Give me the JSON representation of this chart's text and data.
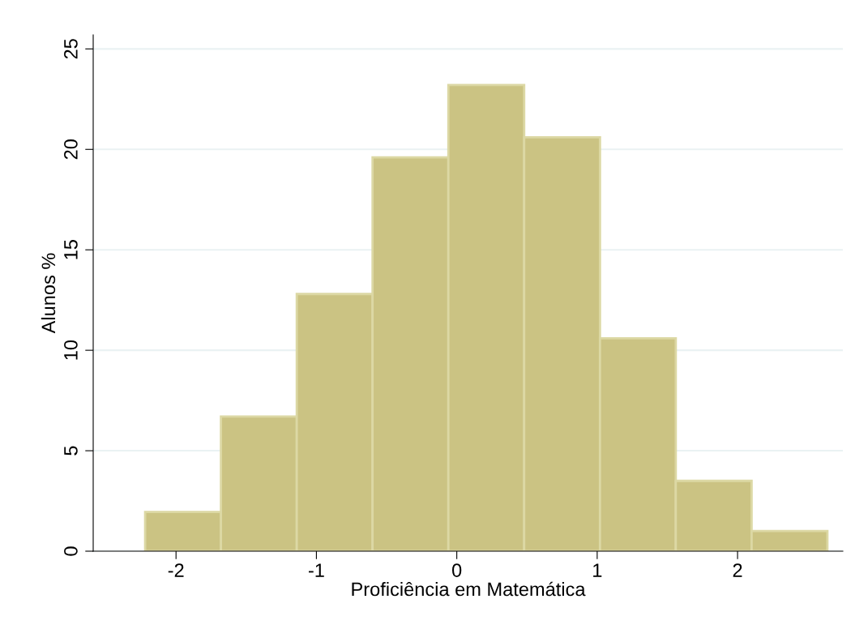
{
  "chart_data": {
    "type": "histogram",
    "xlabel": "Proficiência em Matemática",
    "ylabel": "Alunos %",
    "bins": [
      -2.22,
      -1.68,
      -1.14,
      -0.6,
      -0.06,
      0.48,
      1.02,
      1.56,
      2.1,
      2.64
    ],
    "values": [
      1.95,
      6.7,
      12.8,
      19.6,
      23.2,
      20.6,
      10.6,
      3.5,
      1.0
    ],
    "color": "#cbc383",
    "xlim": [
      -2.59,
      2.75
    ],
    "xticks": [
      -2,
      -1,
      0,
      1,
      2
    ],
    "ylim": [
      0,
      25.7
    ],
    "yticks": [
      0,
      5,
      10,
      15,
      20,
      25
    ],
    "grid": "y"
  }
}
